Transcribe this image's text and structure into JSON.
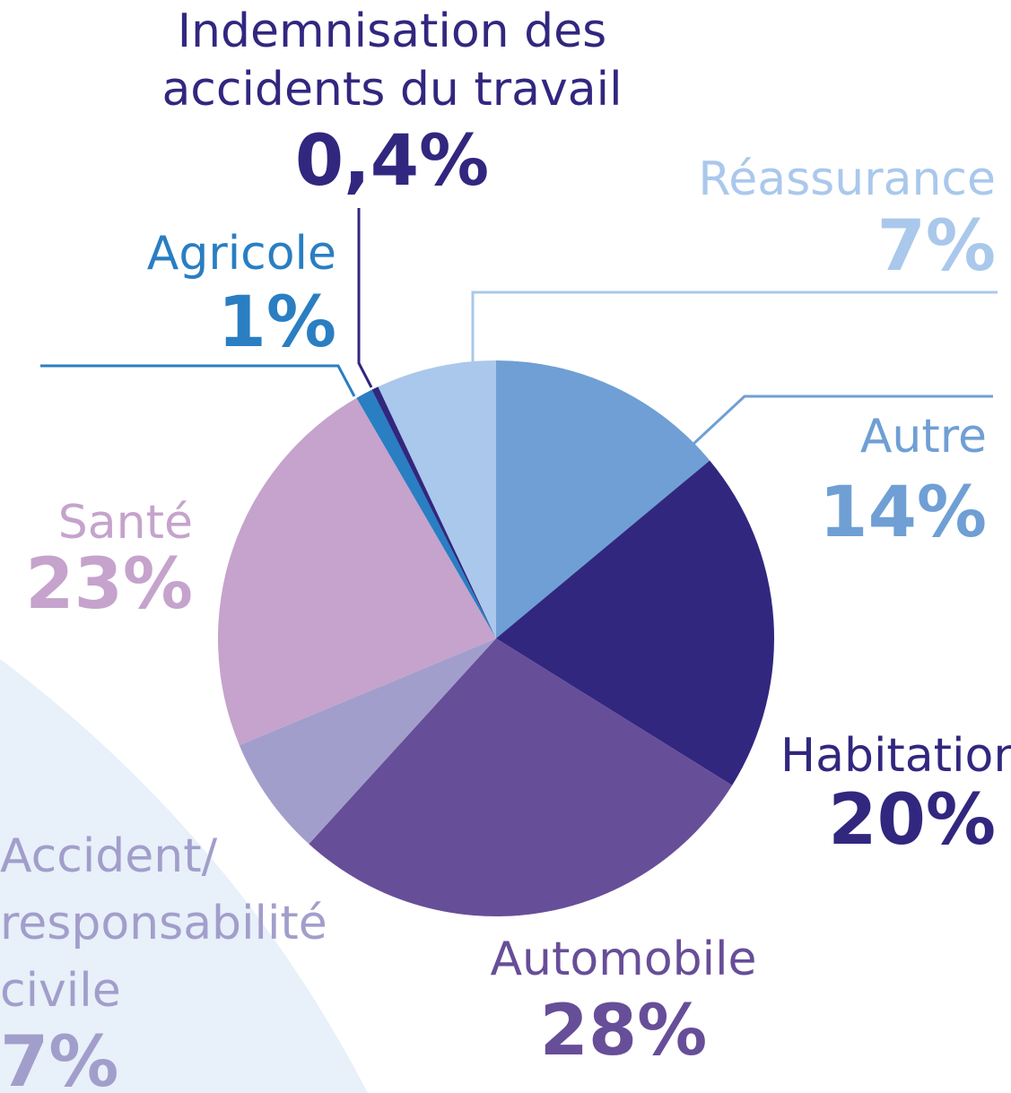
{
  "chart_data": {
    "type": "pie",
    "categories": [
      "Autre",
      "Habitation",
      "Automobile",
      "Accident/\nresponsabilité\ncivile",
      "Santé",
      "Agricole",
      "Indemnisation des\naccidents du travail",
      "Réassurance"
    ],
    "values": [
      14,
      20,
      28,
      7,
      23,
      1,
      0.4,
      7
    ],
    "value_labels": [
      "14%",
      "20%",
      "28%",
      "7%",
      "23%",
      "1%",
      "0,4%",
      "7%"
    ],
    "colors": [
      "#6f9fd4",
      "#31277f",
      "#674e98",
      "#a29ecb",
      "#c5a3cc",
      "#2a7ec2",
      "#31277f",
      "#aac8eb"
    ]
  }
}
